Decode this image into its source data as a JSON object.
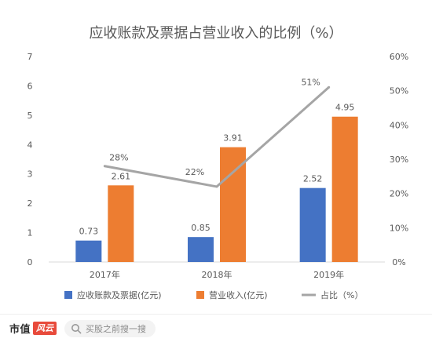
{
  "chart_data": {
    "type": "bar",
    "title": "应收账款及票据占营业收入的比例（%）",
    "categories": [
      "2017年",
      "2018年",
      "2019年"
    ],
    "series": [
      {
        "name": "应收账款及票据(亿元)",
        "type": "bar",
        "axis": "left",
        "color": "#4472C4",
        "values": [
          0.73,
          0.85,
          2.52
        ],
        "labels": [
          "0.73",
          "0.85",
          "2.52"
        ]
      },
      {
        "name": "营业收入(亿元)",
        "type": "bar",
        "axis": "left",
        "color": "#ED7D31",
        "values": [
          2.61,
          3.91,
          4.95
        ],
        "labels": [
          "2.61",
          "3.91",
          "4.95"
        ]
      },
      {
        "name": "占比（%）",
        "type": "line",
        "axis": "right",
        "color": "#A5A5A5",
        "values": [
          28,
          22,
          51
        ],
        "labels": [
          "28%",
          "22%",
          "51%"
        ]
      }
    ],
    "y_left": {
      "min": 0,
      "max": 7,
      "ticks": [
        "0",
        "1",
        "2",
        "3",
        "4",
        "5",
        "6",
        "7"
      ]
    },
    "y_right": {
      "min": 0,
      "max": 60,
      "ticks": [
        "0%",
        "10%",
        "20%",
        "30%",
        "40%",
        "50%",
        "60%"
      ]
    },
    "grid": false,
    "legend_position": "bottom"
  },
  "footer": {
    "brand": "市值",
    "brand_badge": "风云",
    "search_text": "买股之前搜一搜"
  },
  "colors": {
    "title_text": "#595959",
    "axis_text": "#595959",
    "search_icon": "#9a9a9a"
  }
}
